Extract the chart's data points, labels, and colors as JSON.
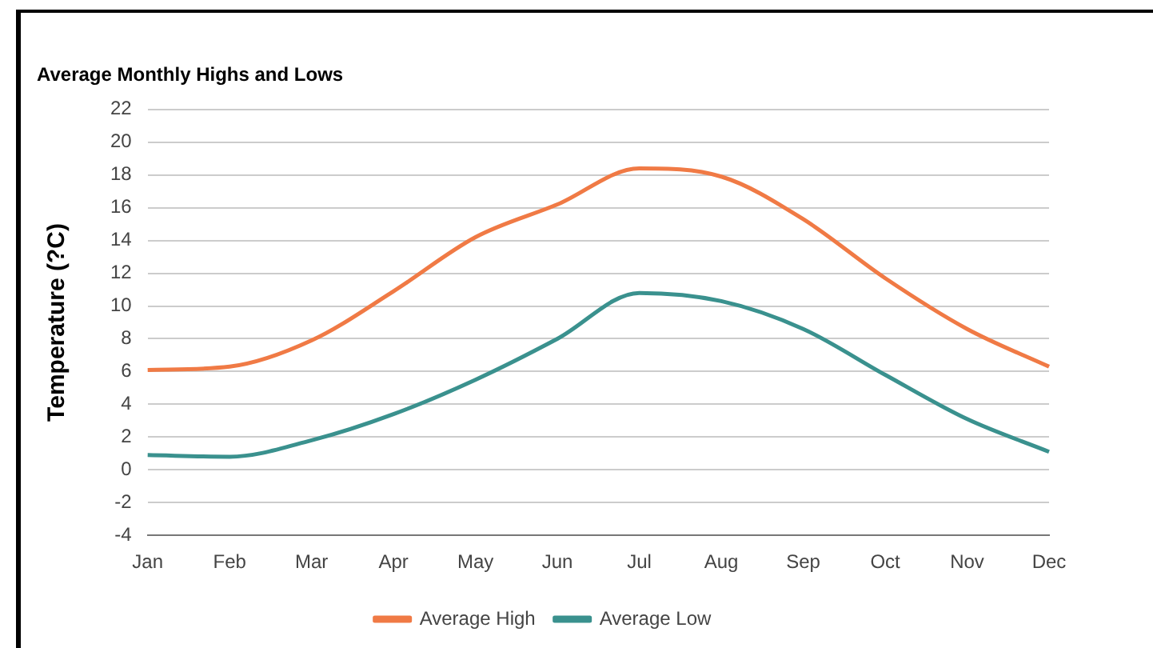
{
  "chart_data": {
    "type": "line",
    "title": "Average Monthly Highs and Lows",
    "ylabel": "Temperature (?C)",
    "categories": [
      "Jan",
      "Feb",
      "Mar",
      "Apr",
      "May",
      "Jun",
      "Jul",
      "Aug",
      "Sep",
      "Oct",
      "Nov",
      "Dec"
    ],
    "series": [
      {
        "name": "Average High",
        "color": "#f07a45",
        "values": [
          6.1,
          6.3,
          7.9,
          10.9,
          14.2,
          16.2,
          18.4,
          17.9,
          15.3,
          11.7,
          8.6,
          6.3
        ]
      },
      {
        "name": "Average Low",
        "color": "#3a918e",
        "values": [
          0.9,
          0.8,
          1.8,
          3.4,
          5.5,
          8.0,
          10.8,
          10.3,
          8.6,
          5.8,
          3.1,
          1.1
        ]
      }
    ],
    "ylim": [
      -4,
      22
    ],
    "yticks": [
      -4,
      -2,
      0,
      2,
      4,
      6,
      8,
      10,
      12,
      14,
      16,
      18,
      20,
      22
    ],
    "grid": "y",
    "legend": "bottom",
    "marker": "none",
    "line_style": "solid"
  }
}
